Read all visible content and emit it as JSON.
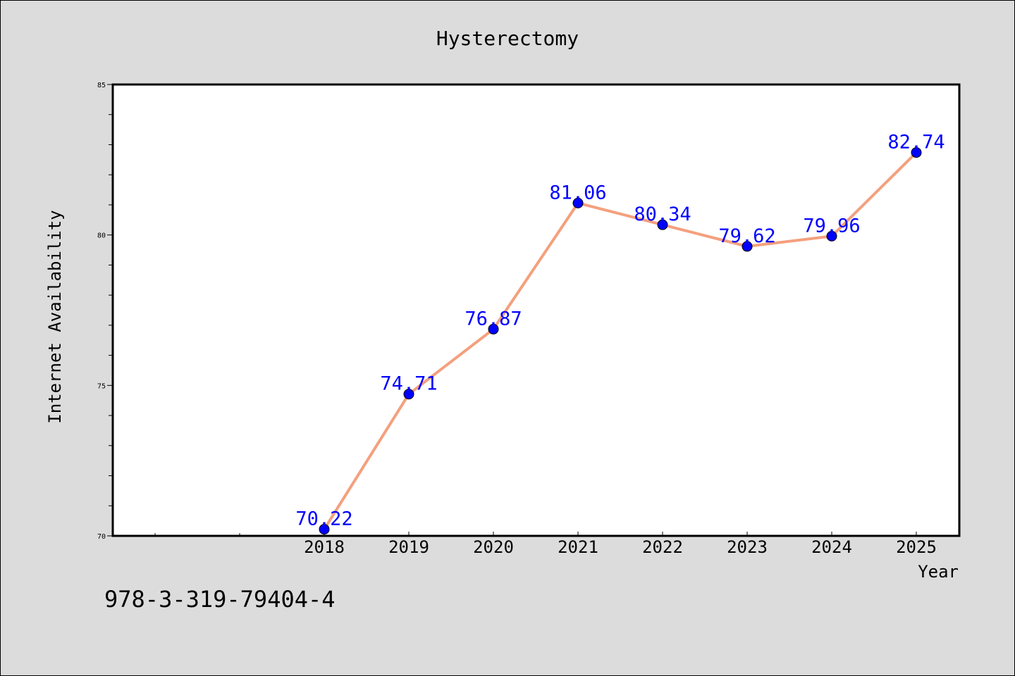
{
  "chart_data": {
    "type": "line",
    "title": "Hysterectomy",
    "xlabel": "Year",
    "ylabel": "Internet Availability",
    "categories": [
      "2018",
      "2019",
      "2020",
      "2021",
      "2022",
      "2023",
      "2024",
      "2025"
    ],
    "series": [
      {
        "values": [
          70.22,
          74.71,
          76.87,
          81.06,
          80.34,
          79.62,
          79.96,
          82.74
        ]
      }
    ],
    "data_labels": [
      "70.22",
      "74.71",
      "76.87",
      "81.06",
      "80.34",
      "79.62",
      "79.96",
      "82.74"
    ],
    "ylim": [
      70,
      85
    ],
    "yticks": [
      "70",
      "75",
      "80",
      "85"
    ],
    "grid": false,
    "colors": {
      "line": "#f4a07e",
      "marker": "#0000ff",
      "label": "#0000ff",
      "background": "#dcdcdc",
      "plot_area": "#ffffff"
    }
  },
  "footer": {
    "isbn": "978-3-319-79404-4"
  }
}
